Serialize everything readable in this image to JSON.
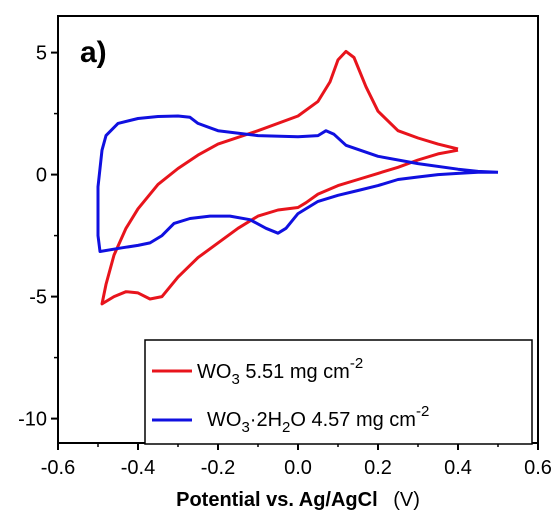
{
  "chart_data": {
    "type": "line",
    "panel_label": "a)",
    "title": "",
    "xlabel": "Potential vs. Ag/AgCl",
    "xlabel_unit": "(V)",
    "ylabel": "",
    "xlim": [
      -0.6,
      0.6
    ],
    "ylim": [
      -11,
      6.5
    ],
    "x_ticks": [
      -0.6,
      -0.4,
      -0.2,
      0.0,
      0.2,
      0.4,
      0.6
    ],
    "x_tick_labels": [
      "-0.6",
      "-0.4",
      "-0.2",
      "0.0",
      "0.2",
      "0.4",
      "0.6"
    ],
    "y_ticks": [
      5,
      0,
      -5,
      -10
    ],
    "y_tick_labels": [
      "5",
      "0",
      "-5",
      "-10"
    ],
    "grid": false,
    "legend_position": "bottom-right",
    "series": [
      {
        "name": "WO3 5.51 mg cm-2",
        "legend_parts": {
          "a": "WO",
          "sub": "3",
          "b": " 5.51 mg cm",
          "sup": "-2"
        },
        "color": "#e8141c",
        "points": [
          [
            0.4,
            1.0
          ],
          [
            0.35,
            0.85
          ],
          [
            0.3,
            0.6
          ],
          [
            0.25,
            0.3
          ],
          [
            0.2,
            0.05
          ],
          [
            0.15,
            -0.2
          ],
          [
            0.1,
            -0.45
          ],
          [
            0.05,
            -0.8
          ],
          [
            0.02,
            -1.15
          ],
          [
            0.0,
            -1.35
          ],
          [
            -0.05,
            -1.45
          ],
          [
            -0.1,
            -1.7
          ],
          [
            -0.15,
            -2.2
          ],
          [
            -0.2,
            -2.8
          ],
          [
            -0.25,
            -3.4
          ],
          [
            -0.3,
            -4.2
          ],
          [
            -0.34,
            -5.0
          ],
          [
            -0.37,
            -5.1
          ],
          [
            -0.4,
            -4.85
          ],
          [
            -0.43,
            -4.8
          ],
          [
            -0.46,
            -5.0
          ],
          [
            -0.49,
            -5.3
          ],
          [
            -0.48,
            -4.5
          ],
          [
            -0.46,
            -3.3
          ],
          [
            -0.43,
            -2.2
          ],
          [
            -0.4,
            -1.4
          ],
          [
            -0.35,
            -0.4
          ],
          [
            -0.3,
            0.25
          ],
          [
            -0.25,
            0.8
          ],
          [
            -0.2,
            1.25
          ],
          [
            -0.1,
            1.8
          ],
          [
            0.0,
            2.4
          ],
          [
            0.05,
            3.0
          ],
          [
            0.08,
            3.8
          ],
          [
            0.1,
            4.7
          ],
          [
            0.12,
            5.05
          ],
          [
            0.14,
            4.8
          ],
          [
            0.17,
            3.6
          ],
          [
            0.2,
            2.6
          ],
          [
            0.25,
            1.8
          ],
          [
            0.3,
            1.5
          ],
          [
            0.35,
            1.25
          ],
          [
            0.4,
            1.05
          ]
        ]
      },
      {
        "name": "WO3·2H2O 4.57 mg cm-2",
        "legend_parts": {
          "a": "WO",
          "sub": "3",
          "b": "·2H",
          "sub2": "2",
          "c": "O 4.57 mg cm",
          "sup": "-2"
        },
        "color": "#1010e0",
        "points": [
          [
            0.5,
            0.1
          ],
          [
            0.45,
            0.1
          ],
          [
            0.4,
            0.05
          ],
          [
            0.35,
            0.0
          ],
          [
            0.3,
            -0.1
          ],
          [
            0.25,
            -0.2
          ],
          [
            0.2,
            -0.45
          ],
          [
            0.15,
            -0.65
          ],
          [
            0.1,
            -0.85
          ],
          [
            0.05,
            -1.1
          ],
          [
            0.0,
            -1.6
          ],
          [
            -0.03,
            -2.2
          ],
          [
            -0.05,
            -2.4
          ],
          [
            -0.08,
            -2.2
          ],
          [
            -0.12,
            -1.85
          ],
          [
            -0.17,
            -1.7
          ],
          [
            -0.22,
            -1.7
          ],
          [
            -0.27,
            -1.8
          ],
          [
            -0.31,
            -2.0
          ],
          [
            -0.34,
            -2.5
          ],
          [
            -0.37,
            -2.8
          ],
          [
            -0.4,
            -2.9
          ],
          [
            -0.44,
            -3.0
          ],
          [
            -0.495,
            -3.15
          ],
          [
            -0.5,
            -2.5
          ],
          [
            -0.5,
            -0.5
          ],
          [
            -0.49,
            1.0
          ],
          [
            -0.48,
            1.6
          ],
          [
            -0.45,
            2.1
          ],
          [
            -0.4,
            2.3
          ],
          [
            -0.35,
            2.38
          ],
          [
            -0.3,
            2.4
          ],
          [
            -0.27,
            2.35
          ],
          [
            -0.25,
            2.1
          ],
          [
            -0.2,
            1.8
          ],
          [
            -0.1,
            1.6
          ],
          [
            0.0,
            1.55
          ],
          [
            0.05,
            1.6
          ],
          [
            0.07,
            1.8
          ],
          [
            0.09,
            1.65
          ],
          [
            0.12,
            1.2
          ],
          [
            0.2,
            0.75
          ],
          [
            0.3,
            0.45
          ],
          [
            0.4,
            0.22
          ],
          [
            0.45,
            0.13
          ],
          [
            0.5,
            0.1
          ]
        ]
      }
    ]
  }
}
